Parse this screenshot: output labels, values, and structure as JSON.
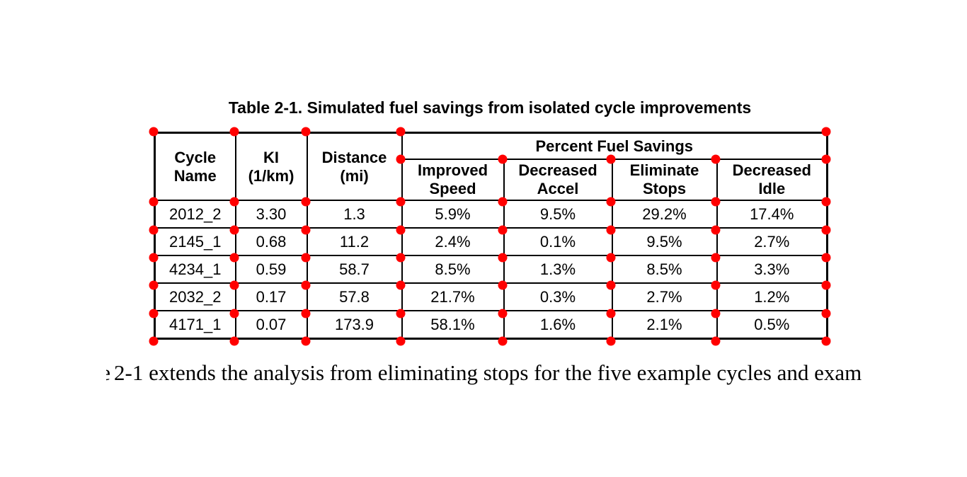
{
  "page": {
    "background_color": "#ffffff",
    "text_color": "#000000",
    "border_color": "#000000"
  },
  "table": {
    "title": "Table 2-1. Simulated fuel savings from isolated cycle improvements",
    "columns": [
      "Cycle\nName",
      "KI\n(1/km)",
      "Distance\n(mi)"
    ],
    "group_header": "Percent Fuel Savings",
    "sub_columns": [
      "Improved\nSpeed",
      "Decreased\nAccel",
      "Eliminate\nStops",
      "Decreased\nIdle"
    ],
    "rows": [
      [
        "2012_2",
        "3.30",
        "1.3",
        "5.9%",
        "9.5%",
        "29.2%",
        "17.4%"
      ],
      [
        "2145_1",
        "0.68",
        "11.2",
        "2.4%",
        "0.1%",
        "9.5%",
        "2.7%"
      ],
      [
        "4234_1",
        "0.59",
        "58.7",
        "8.5%",
        "1.3%",
        "8.5%",
        "3.3%"
      ],
      [
        "2032_2",
        "0.17",
        "57.8",
        "21.7%",
        "0.3%",
        "2.7%",
        "1.2%"
      ],
      [
        "4171_1",
        "0.07",
        "173.9",
        "58.1%",
        "1.6%",
        "2.1%",
        "0.5%"
      ]
    ]
  },
  "annotations": {
    "marker_color": "#ff0000",
    "marker_shape": "circle"
  },
  "paragraph": {
    "clipped_char": "e",
    "text": "2-1 extends the analysis from eliminating stops for the five example cycles and exam"
  }
}
